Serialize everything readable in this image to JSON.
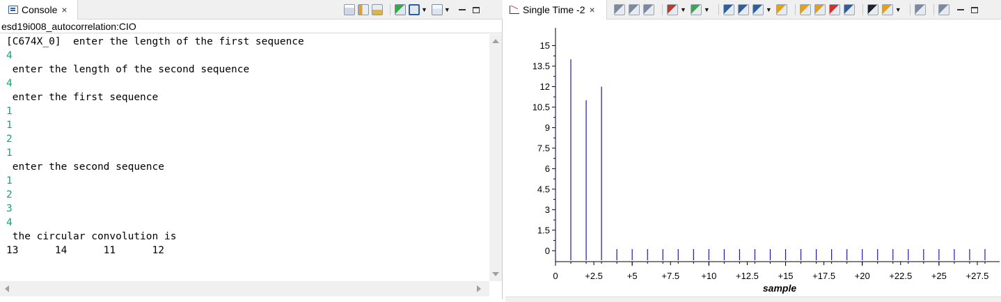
{
  "console": {
    "tab_label": "Console",
    "close_glyph": "×",
    "title": "esd19i008_autocorrelation:CIO",
    "lines": [
      {
        "text": "[C674X_0]  enter the length of the first sequence",
        "kind": "out"
      },
      {
        "text": "4",
        "kind": "in"
      },
      {
        "text": " enter the length of the second sequence",
        "kind": "out"
      },
      {
        "text": "4",
        "kind": "in"
      },
      {
        "text": " enter the first sequence",
        "kind": "out"
      },
      {
        "text": "1",
        "kind": "in"
      },
      {
        "text": "1",
        "kind": "in"
      },
      {
        "text": "2",
        "kind": "in"
      },
      {
        "text": "1",
        "kind": "in"
      },
      {
        "text": " enter the second sequence",
        "kind": "out"
      },
      {
        "text": "1",
        "kind": "in"
      },
      {
        "text": "2",
        "kind": "in"
      },
      {
        "text": "3",
        "kind": "in"
      },
      {
        "text": "4",
        "kind": "in"
      },
      {
        "text": " the circular convolution is",
        "kind": "out"
      },
      {
        "text": "13      14      11      12",
        "kind": "out"
      }
    ],
    "toolbar_icons": [
      "clear-console-icon",
      "scroll-lock-icon",
      "word-wrap-icon",
      "pin-console-icon",
      "display-console-icon",
      "open-console-icon"
    ]
  },
  "graph": {
    "tab_label": "Single Time -2",
    "close_glyph": "×",
    "toolbar_icons": [
      "align-icon",
      "center-icon",
      "fit-icon",
      "marker-icon",
      "add-measure-icon",
      "zoom-in-icon",
      "zoom-out-icon",
      "zoom-fit-icon",
      "refresh-icon",
      "continuous-refresh-icon",
      "sync-icon",
      "remove-icon",
      "data-icon",
      "binoculars-icon",
      "export-icon",
      "save-icon",
      "properties-icon"
    ]
  },
  "chart_data": {
    "type": "stem",
    "xlabel": "sample",
    "x_tick_labels": [
      "0",
      "+2.5",
      "+5",
      "+7.5",
      "+10",
      "+12.5",
      "+15",
      "+17.5",
      "+20",
      "+22.5",
      "+25",
      "+27.5"
    ],
    "x_tick_values": [
      0,
      2.5,
      5,
      7.5,
      10,
      12.5,
      15,
      17.5,
      20,
      22.5,
      25,
      27.5
    ],
    "y_tick_labels": [
      "0",
      "1.5",
      "3",
      "4.5",
      "6",
      "7.5",
      "9",
      "10.5",
      "12",
      "13.5",
      "15"
    ],
    "y_tick_values": [
      0,
      1.5,
      3,
      4.5,
      6,
      7.5,
      9,
      10.5,
      12,
      13.5,
      15
    ],
    "xlim": [
      0,
      28.5
    ],
    "ylim": [
      -0.8,
      16.3
    ],
    "x": [
      0,
      1,
      2,
      3,
      4,
      5,
      6,
      7,
      8,
      9,
      10,
      11,
      12,
      13,
      14,
      15,
      16,
      17,
      18,
      19,
      20,
      21,
      22,
      23,
      24,
      25,
      26,
      27,
      28
    ],
    "y": [
      13,
      14,
      11,
      12,
      0,
      0,
      0,
      0,
      0,
      0,
      0,
      0,
      0,
      0,
      0,
      0,
      0,
      0,
      0,
      0,
      0,
      0,
      0,
      0,
      0,
      0,
      0,
      0,
      0
    ],
    "colors": {
      "stem": "#1a1aa0",
      "axis": "#000000"
    }
  }
}
